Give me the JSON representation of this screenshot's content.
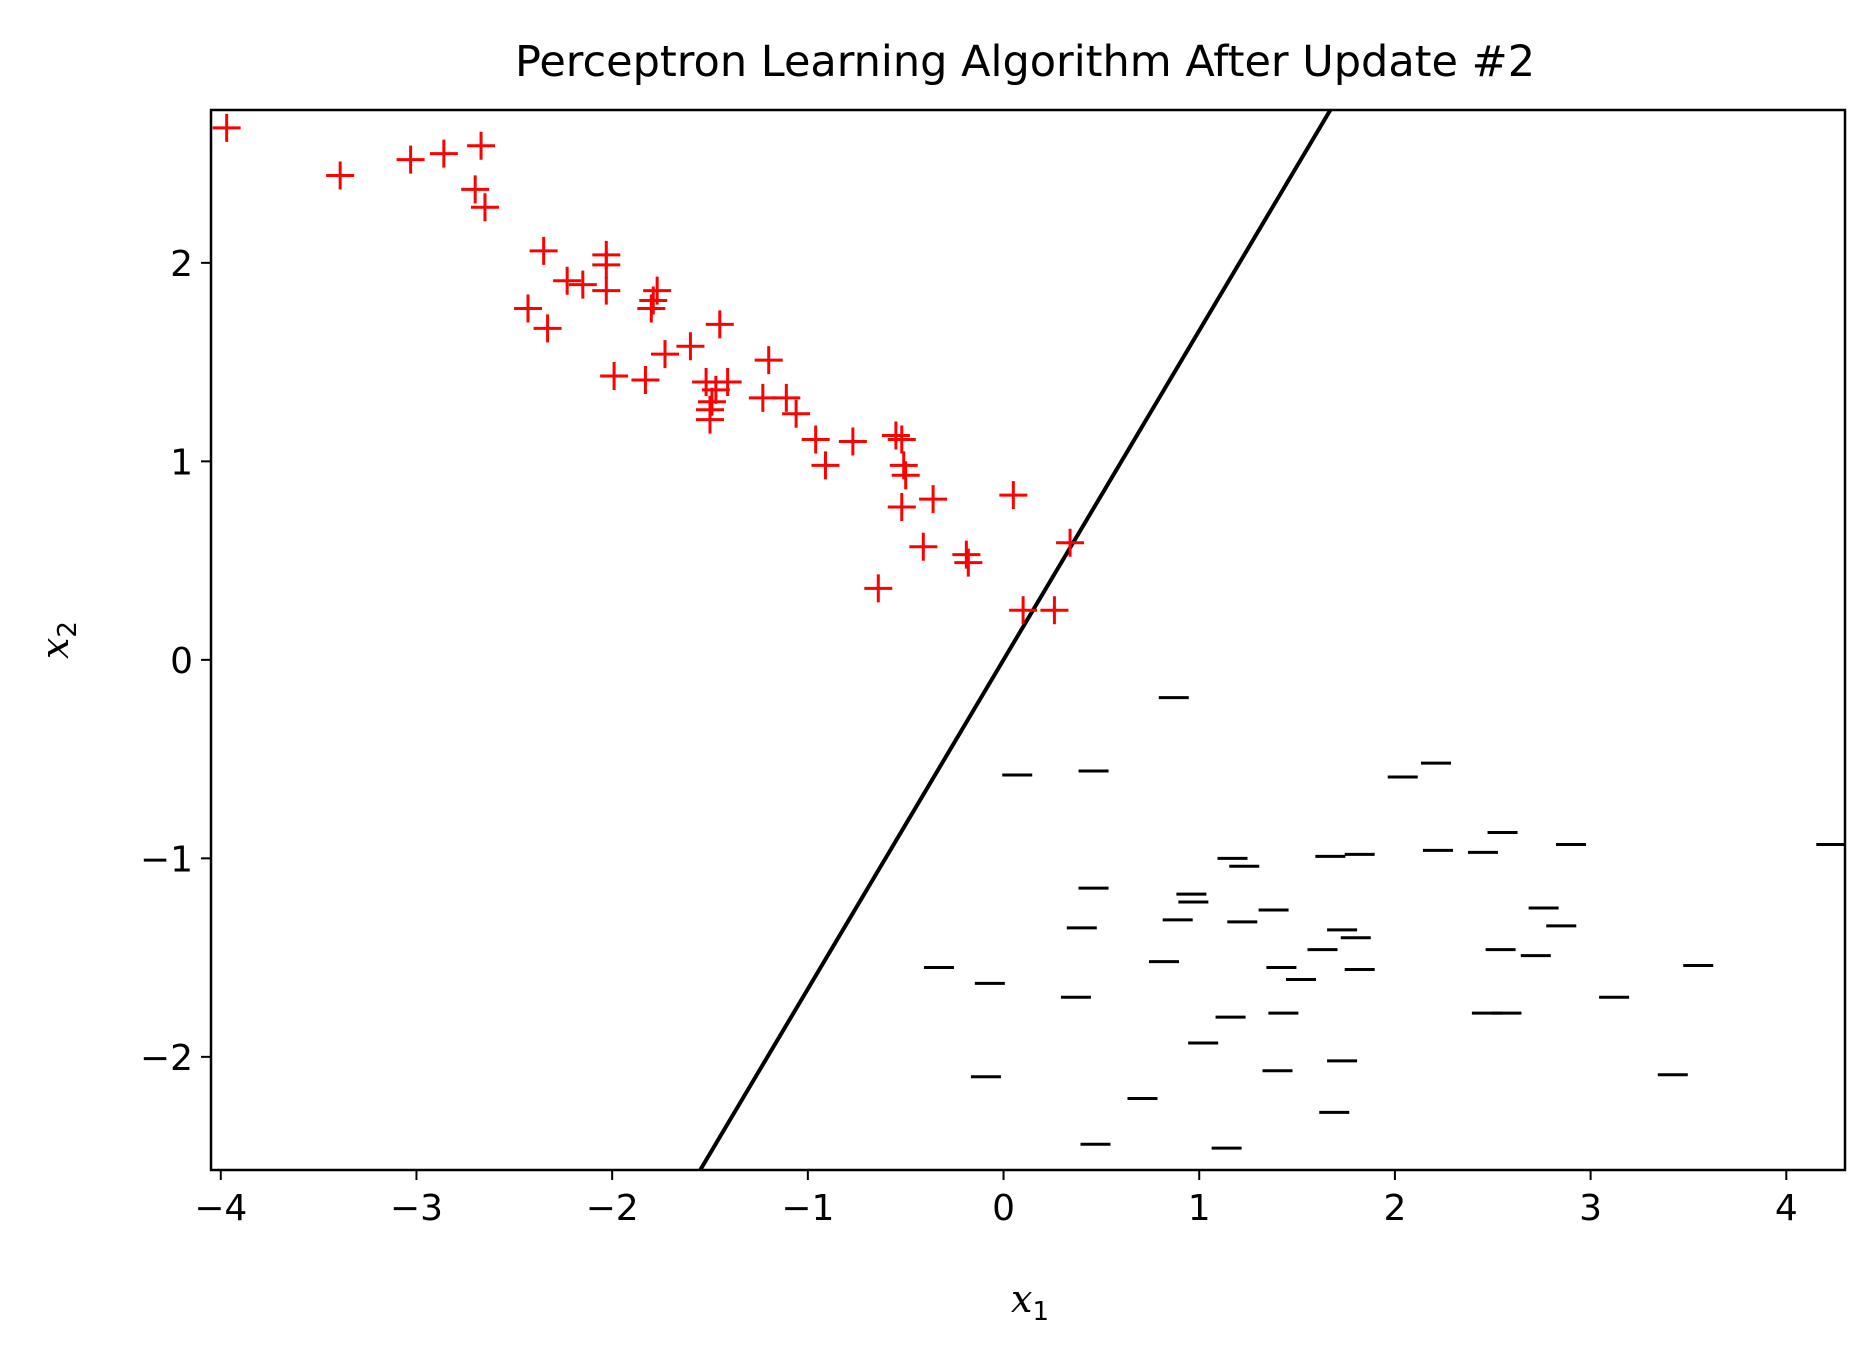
{
  "chart_data": {
    "type": "scatter",
    "title": "Perceptron Learning Algorithm After Update #2",
    "xlabel": "x",
    "xlabel_sub": "1",
    "ylabel": "x",
    "ylabel_sub": "2",
    "xlim": [
      -4.05,
      4.3
    ],
    "ylim": [
      -2.57,
      2.77
    ],
    "xticks": [
      -4,
      -3,
      -2,
      -1,
      0,
      1,
      2,
      3,
      4
    ],
    "yticks": [
      -2,
      -1,
      0,
      1,
      2
    ],
    "grid": false,
    "series": [
      {
        "marker": "+",
        "color": "#ff0000",
        "points": [
          [
            -3.97,
            2.68
          ],
          [
            -3.39,
            2.44
          ],
          [
            -3.03,
            2.52
          ],
          [
            -2.86,
            2.55
          ],
          [
            -2.67,
            2.59
          ],
          [
            -2.7,
            2.37
          ],
          [
            -2.65,
            2.28
          ],
          [
            -2.35,
            2.06
          ],
          [
            -2.43,
            1.77
          ],
          [
            -2.33,
            1.67
          ],
          [
            -2.23,
            1.91
          ],
          [
            -2.15,
            1.89
          ],
          [
            -2.03,
            2.04
          ],
          [
            -2.03,
            1.99
          ],
          [
            -2.03,
            1.86
          ],
          [
            -1.77,
            1.86
          ],
          [
            -1.79,
            1.81
          ],
          [
            -1.8,
            1.77
          ],
          [
            -1.45,
            1.69
          ],
          [
            -1.73,
            1.54
          ],
          [
            -1.6,
            1.58
          ],
          [
            -1.2,
            1.51
          ],
          [
            -1.99,
            1.43
          ],
          [
            -1.83,
            1.41
          ],
          [
            -1.52,
            1.4
          ],
          [
            -1.41,
            1.4
          ],
          [
            -1.47,
            1.36
          ],
          [
            -1.49,
            1.3
          ],
          [
            -1.5,
            1.26
          ],
          [
            -1.5,
            1.21
          ],
          [
            -1.23,
            1.32
          ],
          [
            -1.11,
            1.32
          ],
          [
            -1.06,
            1.24
          ],
          [
            -0.96,
            1.11
          ],
          [
            -0.77,
            1.1
          ],
          [
            -0.55,
            1.13
          ],
          [
            -0.52,
            1.11
          ],
          [
            -0.91,
            0.98
          ],
          [
            -0.51,
            0.98
          ],
          [
            -0.5,
            0.93
          ],
          [
            -0.36,
            0.81
          ],
          [
            -0.52,
            0.77
          ],
          [
            0.05,
            0.83
          ],
          [
            -0.41,
            0.57
          ],
          [
            0.34,
            0.59
          ],
          [
            -0.19,
            0.53
          ],
          [
            -0.18,
            0.49
          ],
          [
            -0.64,
            0.36
          ],
          [
            0.1,
            0.25
          ],
          [
            0.26,
            0.25
          ]
        ]
      },
      {
        "marker": "_",
        "color": "#000000",
        "points": [
          [
            0.87,
            -0.19
          ],
          [
            0.07,
            -0.58
          ],
          [
            0.46,
            -0.56
          ],
          [
            2.04,
            -0.59
          ],
          [
            2.21,
            -0.52
          ],
          [
            2.55,
            -0.87
          ],
          [
            2.22,
            -0.96
          ],
          [
            2.45,
            -0.97
          ],
          [
            2.9,
            -0.93
          ],
          [
            4.23,
            -0.93
          ],
          [
            1.17,
            -1.0
          ],
          [
            1.23,
            -1.04
          ],
          [
            1.67,
            -0.99
          ],
          [
            1.82,
            -0.98
          ],
          [
            0.46,
            -1.15
          ],
          [
            0.96,
            -1.18
          ],
          [
            0.97,
            -1.22
          ],
          [
            0.89,
            -1.31
          ],
          [
            1.22,
            -1.32
          ],
          [
            1.38,
            -1.26
          ],
          [
            0.4,
            -1.35
          ],
          [
            2.76,
            -1.25
          ],
          [
            2.85,
            -1.34
          ],
          [
            1.73,
            -1.36
          ],
          [
            1.8,
            -1.4
          ],
          [
            1.63,
            -1.46
          ],
          [
            2.54,
            -1.46
          ],
          [
            2.72,
            -1.49
          ],
          [
            0.82,
            -1.52
          ],
          [
            1.42,
            -1.55
          ],
          [
            1.52,
            -1.61
          ],
          [
            1.82,
            -1.56
          ],
          [
            3.55,
            -1.54
          ],
          [
            -0.33,
            -1.55
          ],
          [
            -0.07,
            -1.63
          ],
          [
            0.37,
            -1.7
          ],
          [
            3.12,
            -1.7
          ],
          [
            1.16,
            -1.8
          ],
          [
            1.43,
            -1.78
          ],
          [
            2.47,
            -1.78
          ],
          [
            2.57,
            -1.78
          ],
          [
            1.02,
            -1.93
          ],
          [
            1.73,
            -2.02
          ],
          [
            1.4,
            -2.07
          ],
          [
            3.42,
            -2.09
          ],
          [
            -0.09,
            -2.1
          ],
          [
            0.71,
            -2.21
          ],
          [
            1.69,
            -2.28
          ],
          [
            0.47,
            -2.44
          ],
          [
            1.14,
            -2.46
          ]
        ]
      }
    ],
    "line": {
      "color": "#000000",
      "points": [
        [
          -1.55,
          -2.57
        ],
        [
          1.67,
          2.77
        ]
      ]
    }
  }
}
